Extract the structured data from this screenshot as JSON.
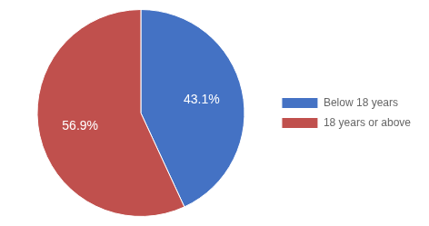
{
  "chart_data": {
    "type": "pie",
    "categories": [
      "Below 18 years",
      "18 years or above"
    ],
    "values": [
      43.1,
      56.9
    ],
    "value_labels": [
      "43.1%",
      "56.9%"
    ],
    "colors": [
      "#4472C4",
      "#C0504D"
    ],
    "data_labels": true,
    "legend": "right"
  }
}
